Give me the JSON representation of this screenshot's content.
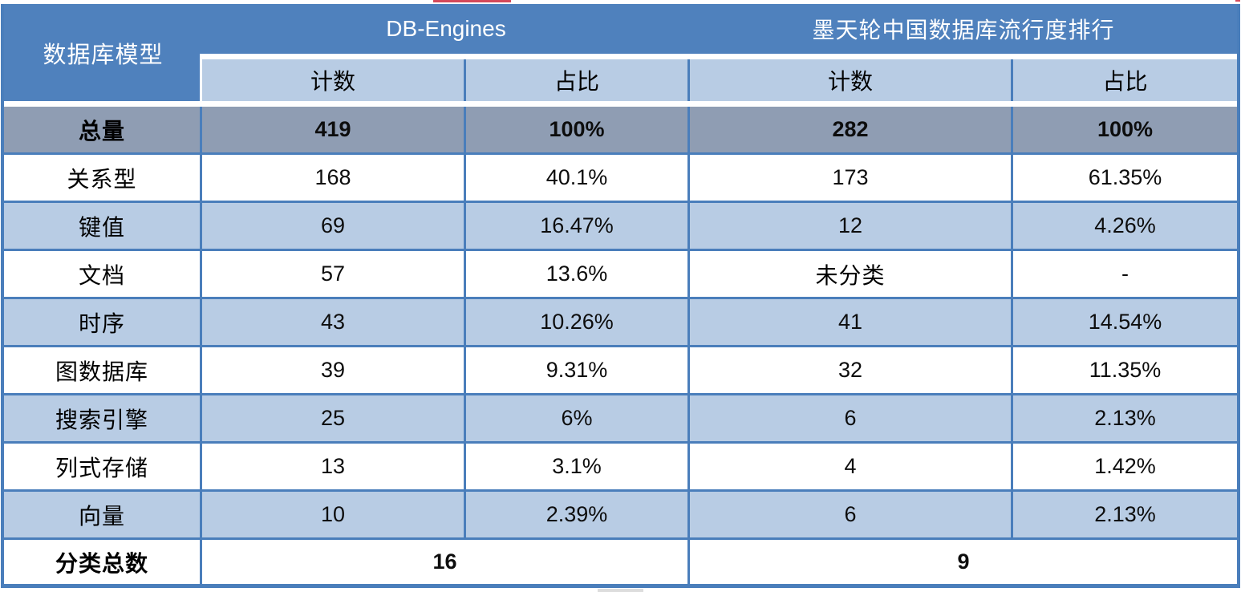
{
  "header": {
    "corner": "数据库模型",
    "groups": [
      {
        "title": "DB-Engines",
        "sub": [
          "计数",
          "占比"
        ]
      },
      {
        "title": "墨天轮中国数据库流行度排行",
        "sub": [
          "计数",
          "占比"
        ]
      }
    ]
  },
  "table": {
    "rows": [
      {
        "label": "总量",
        "values": [
          "419",
          "100%",
          "282",
          "100%"
        ],
        "emphasis": true
      },
      {
        "label": "关系型",
        "values": [
          "168",
          "40.1%",
          "173",
          "61.35%"
        ]
      },
      {
        "label": "键值",
        "values": [
          "69",
          "16.47%",
          "12",
          "4.26%"
        ]
      },
      {
        "label": "文档",
        "values": [
          "57",
          "13.6%",
          "未分类",
          "-"
        ]
      },
      {
        "label": "时序",
        "values": [
          "43",
          "10.26%",
          "41",
          "14.54%"
        ]
      },
      {
        "label": "图数据库",
        "values": [
          "39",
          "9.31%",
          "32",
          "11.35%"
        ]
      },
      {
        "label": "搜索引擎",
        "values": [
          "25",
          "6%",
          "6",
          "2.13%"
        ]
      },
      {
        "label": "列式存储",
        "values": [
          "13",
          "3.1%",
          "4",
          "1.42%"
        ]
      },
      {
        "label": "向量",
        "values": [
          "10",
          "2.39%",
          "6",
          "2.13%"
        ]
      }
    ],
    "footer": {
      "label": "分类总数",
      "dbengines_total": "16",
      "modb_total": "9"
    }
  },
  "colors": {
    "header_blue": "#4f81bd",
    "subheader_light_blue": "#b8cce4",
    "total_row_gray": "#8f9db3",
    "gridline_blue": "#4a7ebb",
    "header_text": "#ffffff",
    "body_text": "#000000"
  },
  "chart_data": {
    "type": "table",
    "title": "数据库模型对比：DB-Engines vs 墨天轮中国数据库流行度排行",
    "columns": [
      "数据库模型",
      "DB-Engines 计数",
      "DB-Engines 占比",
      "墨天轮 计数",
      "墨天轮 占比"
    ],
    "rows": [
      [
        "总量",
        "419",
        "100%",
        "282",
        "100%"
      ],
      [
        "关系型",
        "168",
        "40.1%",
        "173",
        "61.35%"
      ],
      [
        "键值",
        "69",
        "16.47%",
        "12",
        "4.26%"
      ],
      [
        "文档",
        "57",
        "13.6%",
        "未分类",
        "-"
      ],
      [
        "时序",
        "43",
        "10.26%",
        "41",
        "14.54%"
      ],
      [
        "图数据库",
        "39",
        "9.31%",
        "32",
        "11.35%"
      ],
      [
        "搜索引擎",
        "25",
        "6%",
        "6",
        "2.13%"
      ],
      [
        "列式存储",
        "13",
        "3.1%",
        "4",
        "1.42%"
      ],
      [
        "向量",
        "10",
        "2.39%",
        "6",
        "2.13%"
      ],
      [
        "分类总数",
        "16",
        "",
        "9",
        ""
      ]
    ]
  }
}
